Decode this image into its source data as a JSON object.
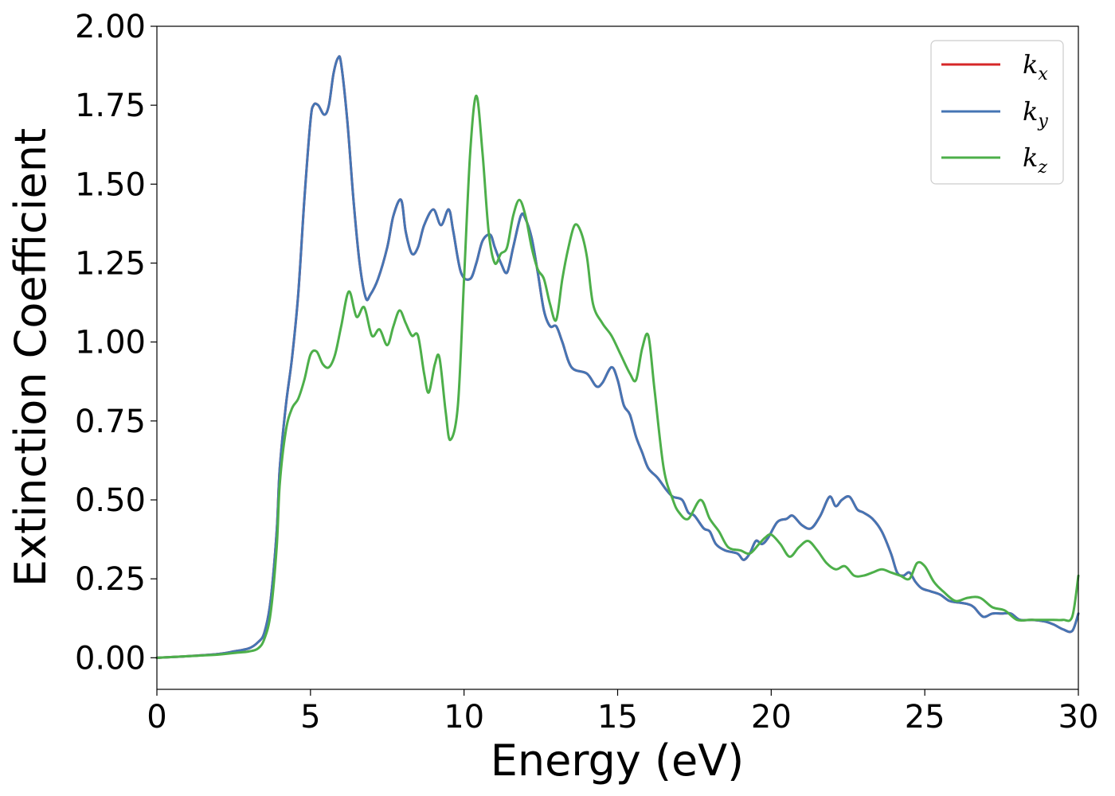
{
  "chart_data": {
    "type": "line",
    "title": "",
    "xlabel": "Energy (eV)",
    "ylabel": "Extinction Coefficient",
    "xlim": [
      0,
      30
    ],
    "ylim": [
      -0.1,
      2.0
    ],
    "xticks": [
      0,
      5,
      10,
      15,
      20,
      25,
      30
    ],
    "yticks": [
      0.0,
      0.25,
      0.5,
      0.75,
      1.0,
      1.25,
      1.5,
      1.75,
      2.0
    ],
    "xtick_labels": [
      "0",
      "5",
      "10",
      "15",
      "20",
      "25",
      "30"
    ],
    "ytick_labels": [
      "0.00",
      "0.25",
      "0.50",
      "0.75",
      "1.00",
      "1.25",
      "1.50",
      "1.75",
      "2.00"
    ],
    "grid": false,
    "legend_position": "top-right",
    "series": [
      {
        "name": "kx",
        "legend_base": "k",
        "legend_sub": "x",
        "color": "#d62728",
        "x": [
          0,
          1,
          2,
          2.5,
          3,
          3.3,
          3.5,
          3.7,
          3.9,
          4.0,
          4.2,
          4.4,
          4.6,
          4.8,
          5.0,
          5.1,
          5.25,
          5.45,
          5.6,
          5.75,
          5.9,
          6.0,
          6.2,
          6.4,
          6.6,
          6.8,
          6.95,
          7.2,
          7.5,
          7.7,
          7.95,
          8.1,
          8.3,
          8.5,
          8.7,
          9.0,
          9.25,
          9.5,
          9.65,
          9.9,
          10.2,
          10.4,
          10.6,
          10.85,
          11.0,
          11.2,
          11.4,
          11.6,
          11.85,
          12.0,
          12.2,
          12.4,
          12.6,
          12.8,
          13.0,
          13.2,
          13.5,
          14.0,
          14.3,
          14.5,
          14.8,
          15.0,
          15.2,
          15.4,
          15.6,
          15.8,
          16.0,
          16.3,
          16.6,
          16.8,
          17.1,
          17.3,
          17.5,
          17.8,
          18.0,
          18.2,
          18.5,
          18.9,
          19.1,
          19.3,
          19.5,
          19.7,
          19.9,
          20.2,
          20.5,
          20.7,
          21.0,
          21.3,
          21.6,
          21.9,
          22.1,
          22.3,
          22.55,
          22.8,
          23.0,
          23.3,
          23.6,
          23.9,
          24.1,
          24.3,
          24.5,
          24.7,
          24.9,
          25.2,
          25.5,
          25.8,
          26.1,
          26.4,
          26.6,
          26.9,
          27.2,
          27.5,
          27.8,
          28.1,
          28.5,
          28.9,
          29.2,
          29.5,
          29.8,
          30.0
        ],
        "values": [
          0.0,
          0.005,
          0.012,
          0.02,
          0.03,
          0.05,
          0.08,
          0.18,
          0.4,
          0.6,
          0.8,
          0.95,
          1.15,
          1.45,
          1.7,
          1.75,
          1.75,
          1.72,
          1.75,
          1.85,
          1.9,
          1.88,
          1.7,
          1.45,
          1.25,
          1.14,
          1.15,
          1.2,
          1.3,
          1.4,
          1.45,
          1.35,
          1.28,
          1.3,
          1.37,
          1.42,
          1.37,
          1.42,
          1.35,
          1.22,
          1.2,
          1.25,
          1.32,
          1.34,
          1.3,
          1.25,
          1.22,
          1.3,
          1.4,
          1.39,
          1.33,
          1.22,
          1.1,
          1.05,
          1.05,
          1.0,
          0.92,
          0.9,
          0.86,
          0.87,
          0.92,
          0.88,
          0.8,
          0.77,
          0.7,
          0.65,
          0.6,
          0.57,
          0.53,
          0.51,
          0.5,
          0.46,
          0.45,
          0.41,
          0.4,
          0.36,
          0.34,
          0.33,
          0.31,
          0.33,
          0.37,
          0.36,
          0.38,
          0.43,
          0.44,
          0.45,
          0.42,
          0.41,
          0.45,
          0.51,
          0.48,
          0.5,
          0.51,
          0.47,
          0.46,
          0.44,
          0.4,
          0.33,
          0.27,
          0.26,
          0.27,
          0.24,
          0.22,
          0.21,
          0.2,
          0.18,
          0.175,
          0.17,
          0.16,
          0.13,
          0.14,
          0.14,
          0.14,
          0.12,
          0.12,
          0.115,
          0.105,
          0.09,
          0.085,
          0.14
        ]
      },
      {
        "name": "ky",
        "legend_base": "k",
        "legend_sub": "y",
        "color": "#4575b4",
        "x": [
          0,
          1,
          2,
          2.5,
          3,
          3.3,
          3.5,
          3.7,
          3.9,
          4.0,
          4.2,
          4.4,
          4.6,
          4.8,
          5.0,
          5.1,
          5.25,
          5.45,
          5.6,
          5.75,
          5.9,
          6.0,
          6.2,
          6.4,
          6.6,
          6.8,
          6.95,
          7.2,
          7.5,
          7.7,
          7.95,
          8.1,
          8.3,
          8.5,
          8.7,
          9.0,
          9.25,
          9.5,
          9.65,
          9.9,
          10.2,
          10.4,
          10.6,
          10.85,
          11.0,
          11.2,
          11.4,
          11.6,
          11.85,
          12.0,
          12.2,
          12.4,
          12.6,
          12.8,
          13.0,
          13.2,
          13.5,
          14.0,
          14.3,
          14.5,
          14.8,
          15.0,
          15.2,
          15.4,
          15.6,
          15.8,
          16.0,
          16.3,
          16.6,
          16.8,
          17.1,
          17.3,
          17.5,
          17.8,
          18.0,
          18.2,
          18.5,
          18.9,
          19.1,
          19.3,
          19.5,
          19.7,
          19.9,
          20.2,
          20.5,
          20.7,
          21.0,
          21.3,
          21.6,
          21.9,
          22.1,
          22.3,
          22.55,
          22.8,
          23.0,
          23.3,
          23.6,
          23.9,
          24.1,
          24.3,
          24.5,
          24.7,
          24.9,
          25.2,
          25.5,
          25.8,
          26.1,
          26.4,
          26.6,
          26.9,
          27.2,
          27.5,
          27.8,
          28.1,
          28.5,
          28.9,
          29.2,
          29.5,
          29.8,
          30.0
        ],
        "values": [
          0.0,
          0.005,
          0.012,
          0.02,
          0.03,
          0.05,
          0.08,
          0.18,
          0.4,
          0.6,
          0.8,
          0.95,
          1.15,
          1.45,
          1.7,
          1.75,
          1.75,
          1.72,
          1.75,
          1.85,
          1.9,
          1.88,
          1.7,
          1.45,
          1.25,
          1.14,
          1.15,
          1.2,
          1.3,
          1.4,
          1.45,
          1.35,
          1.28,
          1.3,
          1.37,
          1.42,
          1.37,
          1.42,
          1.35,
          1.22,
          1.2,
          1.25,
          1.32,
          1.34,
          1.3,
          1.25,
          1.22,
          1.3,
          1.4,
          1.39,
          1.33,
          1.22,
          1.1,
          1.05,
          1.05,
          1.0,
          0.92,
          0.9,
          0.86,
          0.87,
          0.92,
          0.88,
          0.8,
          0.77,
          0.7,
          0.65,
          0.6,
          0.57,
          0.53,
          0.51,
          0.5,
          0.46,
          0.45,
          0.41,
          0.4,
          0.36,
          0.34,
          0.33,
          0.31,
          0.33,
          0.37,
          0.36,
          0.38,
          0.43,
          0.44,
          0.45,
          0.42,
          0.41,
          0.45,
          0.51,
          0.48,
          0.5,
          0.51,
          0.47,
          0.46,
          0.44,
          0.4,
          0.33,
          0.27,
          0.26,
          0.27,
          0.24,
          0.22,
          0.21,
          0.2,
          0.18,
          0.175,
          0.17,
          0.16,
          0.13,
          0.14,
          0.14,
          0.14,
          0.12,
          0.12,
          0.115,
          0.105,
          0.09,
          0.085,
          0.14
        ]
      },
      {
        "name": "kz",
        "legend_base": "k",
        "legend_sub": "z",
        "color": "#4daf4a",
        "x": [
          0,
          1,
          2,
          2.5,
          3,
          3.3,
          3.5,
          3.7,
          3.9,
          4.0,
          4.2,
          4.4,
          4.6,
          4.8,
          5.0,
          5.2,
          5.4,
          5.6,
          5.8,
          6.0,
          6.25,
          6.5,
          6.75,
          7.0,
          7.25,
          7.5,
          7.7,
          7.9,
          8.1,
          8.3,
          8.5,
          8.7,
          8.85,
          9.05,
          9.2,
          9.4,
          9.55,
          9.8,
          10.0,
          10.2,
          10.4,
          10.6,
          10.8,
          11.0,
          11.2,
          11.4,
          11.6,
          11.8,
          12.0,
          12.2,
          12.4,
          12.6,
          12.8,
          13.0,
          13.2,
          13.4,
          13.6,
          13.8,
          14.0,
          14.2,
          14.5,
          14.8,
          15.1,
          15.4,
          15.6,
          15.8,
          16.0,
          16.2,
          16.5,
          16.8,
          17.0,
          17.3,
          17.7,
          18.0,
          18.3,
          18.6,
          19.0,
          19.3,
          19.6,
          19.8,
          20.0,
          20.3,
          20.6,
          20.9,
          21.2,
          21.5,
          21.8,
          22.1,
          22.4,
          22.7,
          23.0,
          23.3,
          23.6,
          23.9,
          24.2,
          24.5,
          24.75,
          25.0,
          25.3,
          25.6,
          26.0,
          26.4,
          26.8,
          27.2,
          27.6,
          28.0,
          28.4,
          28.8,
          29.2,
          29.5,
          29.8,
          30.0
        ],
        "values": [
          0.0,
          0.005,
          0.01,
          0.015,
          0.02,
          0.03,
          0.06,
          0.14,
          0.35,
          0.55,
          0.72,
          0.79,
          0.82,
          0.88,
          0.96,
          0.97,
          0.93,
          0.92,
          0.96,
          1.05,
          1.16,
          1.08,
          1.11,
          1.02,
          1.04,
          0.99,
          1.05,
          1.1,
          1.06,
          1.02,
          1.02,
          0.9,
          0.84,
          0.93,
          0.95,
          0.78,
          0.69,
          0.8,
          1.2,
          1.6,
          1.78,
          1.6,
          1.35,
          1.25,
          1.28,
          1.3,
          1.4,
          1.45,
          1.4,
          1.3,
          1.23,
          1.2,
          1.12,
          1.07,
          1.2,
          1.3,
          1.37,
          1.35,
          1.27,
          1.12,
          1.06,
          1.02,
          0.96,
          0.9,
          0.88,
          0.98,
          1.02,
          0.85,
          0.6,
          0.5,
          0.46,
          0.44,
          0.5,
          0.44,
          0.4,
          0.35,
          0.34,
          0.33,
          0.36,
          0.38,
          0.39,
          0.36,
          0.32,
          0.35,
          0.37,
          0.34,
          0.3,
          0.28,
          0.29,
          0.26,
          0.26,
          0.27,
          0.28,
          0.27,
          0.26,
          0.25,
          0.3,
          0.29,
          0.24,
          0.21,
          0.18,
          0.19,
          0.19,
          0.16,
          0.15,
          0.12,
          0.12,
          0.12,
          0.12,
          0.12,
          0.13,
          0.26
        ]
      }
    ]
  }
}
